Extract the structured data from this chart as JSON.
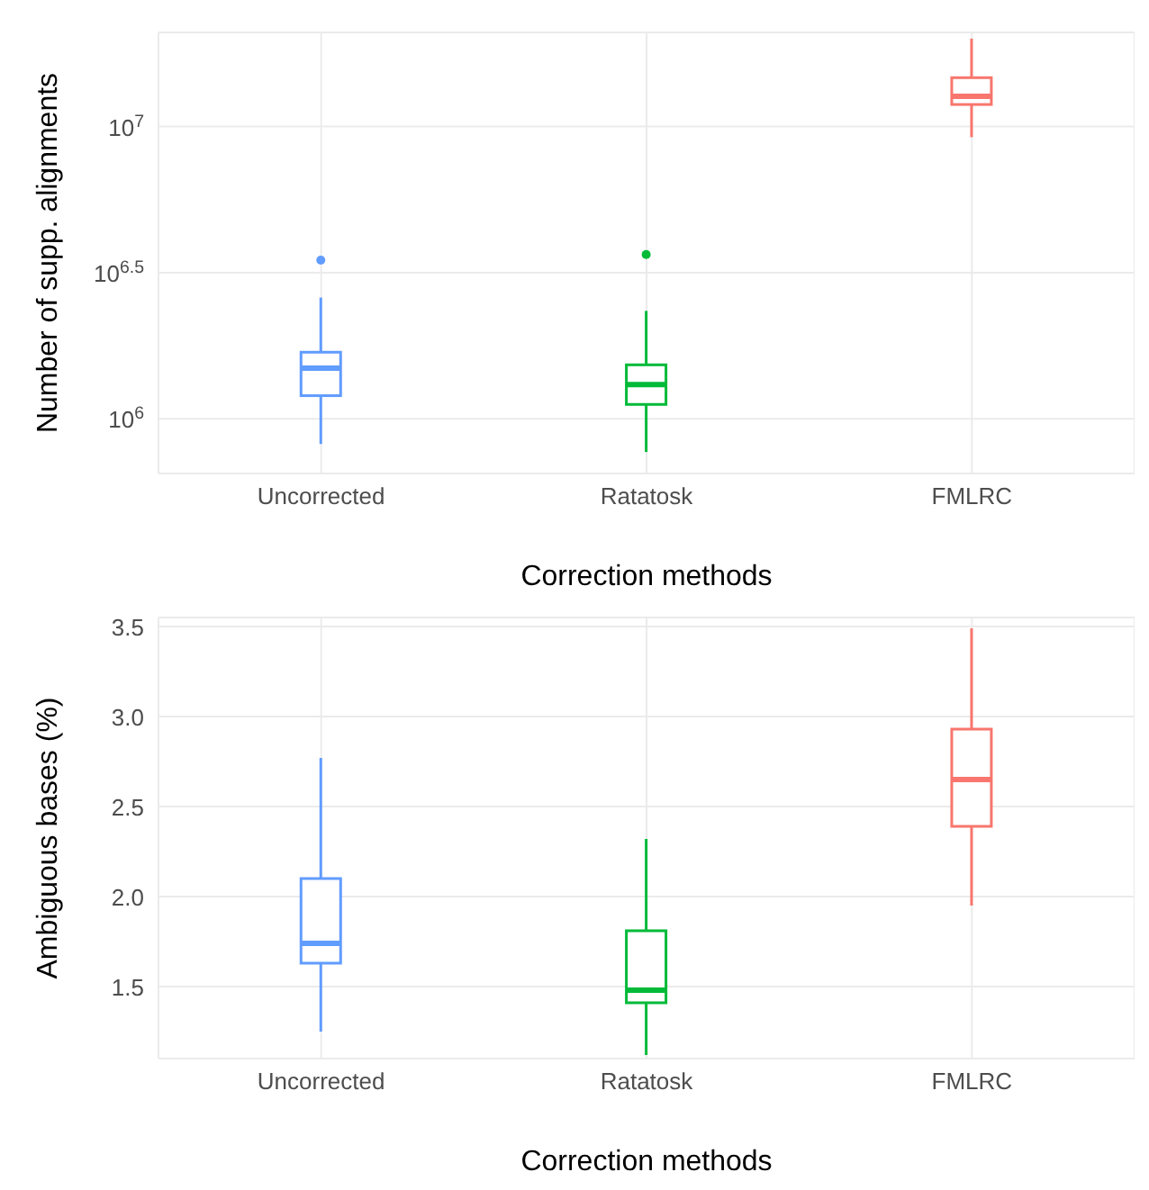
{
  "chart_data": [
    {
      "type": "box",
      "ylabel": "Number of supp. alignments",
      "xlabel": "Correction methods",
      "categories": [
        "Uncorrected",
        "Ratatosk",
        "FMLRC"
      ],
      "colors": [
        "#619cff",
        "#00ba38",
        "#f8766d"
      ],
      "log": "y",
      "ylim": [
        650000,
        21000000
      ],
      "yticks": [
        {
          "value": 1000000,
          "label": "10$^{6}$"
        },
        {
          "value": 3162278,
          "label": "10$^{6.5}$"
        },
        {
          "value": 10000000,
          "label": "10$^{7}$"
        }
      ],
      "grid": true,
      "boxes": [
        {
          "low": 820000,
          "q1": 1200000,
          "median": 1490000,
          "q3": 1690000,
          "high": 2600000,
          "outliers": [
            3490000
          ]
        },
        {
          "low": 770000,
          "q1": 1120000,
          "median": 1310000,
          "q3": 1530000,
          "high": 2340000,
          "outliers": [
            3650000
          ]
        },
        {
          "low": 9200000,
          "q1": 11900000,
          "median": 12700000,
          "q3": 14700000,
          "high": 20000000
        }
      ]
    },
    {
      "type": "box",
      "ylabel": "Ambiguous bases (%)",
      "xlabel": "Correction methods",
      "categories": [
        "Uncorrected",
        "Ratatosk",
        "FMLRC"
      ],
      "colors": [
        "#619cff",
        "#00ba38",
        "#f8766d"
      ],
      "ylim": [
        1.1,
        3.55
      ],
      "yticks": [
        {
          "value": 1.5,
          "label": "1.5"
        },
        {
          "value": 2,
          "label": "2.0"
        },
        {
          "value": 2.5,
          "label": "2.5"
        },
        {
          "value": 3,
          "label": "3.0"
        },
        {
          "value": 3.5,
          "label": "3.5"
        }
      ],
      "grid": true,
      "boxes": [
        {
          "low": 1.25,
          "q1": 1.63,
          "median": 1.74,
          "q3": 2.1,
          "high": 2.77
        },
        {
          "low": 1.12,
          "q1": 1.41,
          "median": 1.48,
          "q3": 1.81,
          "high": 2.32
        },
        {
          "low": 1.95,
          "q1": 2.39,
          "median": 2.65,
          "q3": 2.93,
          "high": 3.49
        }
      ]
    }
  ]
}
